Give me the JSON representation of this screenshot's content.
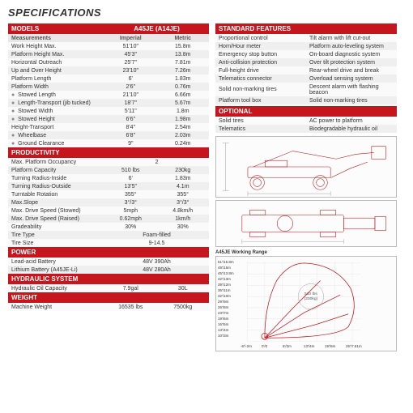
{
  "title": "SPECIFICATIONS",
  "models": {
    "header": [
      "MODELS",
      "A45JE (A14JE)"
    ],
    "sub": [
      "Measurements",
      "Imperial",
      "Metric"
    ],
    "rows": [
      [
        "Work Height Max.",
        "51'10\"",
        "15.8m"
      ],
      [
        "Platform Height Max.",
        "45'3\"",
        "13.8m"
      ],
      [
        "Horizontal Outreach",
        "25'7\"",
        "7.81m"
      ],
      [
        "Up and Over Height",
        "23'10\"",
        "7.26m"
      ],
      [
        "Platform Length",
        "6'",
        "1.83m"
      ],
      [
        "Platform Width",
        "2'6\"",
        "0.76m"
      ],
      [
        "Stowed Length",
        "21'10\"",
        "6.66m",
        "b"
      ],
      [
        "Length-Transport (jib tucked)",
        "18'7\"",
        "5.67m",
        "b"
      ],
      [
        "Stowed Width",
        "5'11\"",
        "1.8m",
        "b"
      ],
      [
        "Stowed Height",
        "6'6\"",
        "1.98m",
        "b"
      ],
      [
        "Height-Transport",
        "8'4\"",
        "2.54m"
      ],
      [
        "Wheelbase",
        "6'8\"",
        "2.03m",
        "b"
      ],
      [
        "Ground Clearance",
        "9\"",
        "0.24m",
        "b"
      ]
    ]
  },
  "productivity": {
    "header": "PRODUCTIVITY",
    "rows": [
      [
        "Max. Platform Occupancy",
        "2",
        ""
      ],
      [
        "Platform Capacity",
        "510 lbs",
        "230kg"
      ],
      [
        "Turning Radius-Inside",
        "6'",
        "1.83m"
      ],
      [
        "Turning Radius-Outside",
        "13'5\"",
        "4.1m"
      ],
      [
        "Turntable Rotation",
        "355°",
        "355°"
      ],
      [
        "Max.Slope",
        "3°/3°",
        "3°/3°"
      ],
      [
        "Max. Drive Speed (Stowed)",
        "5mph",
        "4.8km/h"
      ],
      [
        "Max. Drive Speed (Raised)",
        "0.62mph",
        "1km/h"
      ],
      [
        "Gradeability",
        "30%",
        "30%"
      ],
      [
        "Tire Type",
        "Foam-filled",
        ""
      ],
      [
        "Tire Size",
        "9-14.5",
        ""
      ]
    ]
  },
  "power": {
    "header": "POWER",
    "rows": [
      [
        "Lead-acid Battery",
        "48V 390Ah",
        ""
      ],
      [
        "Lithium Battery (A45JE-Li)",
        "48V 280Ah",
        ""
      ]
    ]
  },
  "hydraulic": {
    "header": "HYDRAULIC SYSTEM",
    "rows": [
      [
        "Hydraulic Oil Capacity",
        "7.9gal",
        "30L"
      ]
    ]
  },
  "weight": {
    "header": "WEIGHT",
    "rows": [
      [
        "Machine Weight",
        "16535 lbs",
        "7500kg"
      ]
    ]
  },
  "features": {
    "header": "STANDARD FEATURES",
    "rows": [
      [
        "Proportional control",
        "Tilt alarm with lift cut-out"
      ],
      [
        "Horn/Hour meter",
        "Platform auto-leveling system"
      ],
      [
        "Emergency stop button",
        "On-board diagnostic system"
      ],
      [
        "Anti-collision protection",
        "Over tilt protection system"
      ],
      [
        "Full-height drive",
        "Rear-wheel drive and break"
      ],
      [
        "Telematics connector",
        "Overload sensing system"
      ],
      [
        "Solid non-marking tires",
        "Descent alarm with flashing beacon"
      ],
      [
        "Platform tool box",
        "Solid non-marking tires"
      ]
    ]
  },
  "optional": {
    "header": "OPTIONAL",
    "rows": [
      [
        "Solid tires",
        "AC power to platform"
      ],
      [
        "Telematics",
        "Biodegradable hydraulic oil"
      ]
    ]
  },
  "range": {
    "title": "A45JE Working Range",
    "capacity": "510 lbs\n(230kg)",
    "ylabels": [
      "51'/15.8m",
      "49'/15m",
      "45'/13.8m",
      "42'/13m",
      "39'/12m",
      "36'/11m",
      "32'/10m",
      "29'/9m",
      "26'/8m",
      "23'/7m",
      "19'/6m",
      "16'/5m",
      "13'/4m",
      "10'/3m"
    ],
    "xlabels": [
      "-6'/-2m",
      "0'/0",
      "6'/2m",
      "13'/4m",
      "19'/6m",
      "25'/7.81m"
    ]
  }
}
